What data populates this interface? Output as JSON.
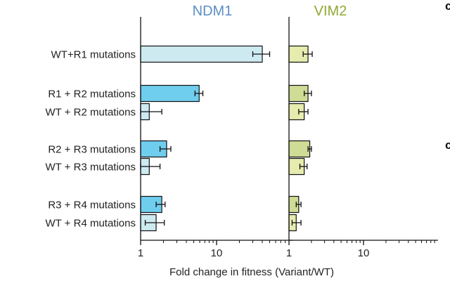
{
  "chart_data": {
    "type": "bar",
    "orientation": "horizontal",
    "xscale": "log",
    "xlim": [
      1,
      100
    ],
    "xlabel": "Fold change in fitness (Variant/WT)",
    "categories": [
      "WT+R1 mutations",
      "R1 + R2 mutations",
      "WT + R2 mutations",
      "R2 + R3 mutations",
      "WT + R3 mutations",
      "R3 + R4 mutations",
      "WT + R4 mutations"
    ],
    "panels": [
      {
        "title": "NDM1",
        "title_color": "#5b8fc4",
        "xticks": [
          1,
          10
        ],
        "xtick_labels": [
          "1",
          "10"
        ],
        "series": [
          {
            "values": [
              40,
              5.9,
              1.3,
              2.2,
              1.3,
              1.9,
              1.6
            ],
            "err_low": [
              30,
              5.2,
              1.0,
              1.8,
              1.0,
              1.6,
              1.15
            ],
            "err_high": [
              50,
              6.6,
              1.9,
              2.5,
              1.8,
              2.1,
              2.05
            ],
            "fills": [
              "#cdeaf1",
              "#6fcdee",
              "#cdeaf1",
              "#6fcdee",
              "#cdeaf1",
              "#6fcdee",
              "#cdeaf1"
            ]
          }
        ]
      },
      {
        "title": "VIM2",
        "title_color": "#8fa832",
        "xticks": [
          1,
          10
        ],
        "xtick_labels": [
          "1",
          "10"
        ],
        "series": [
          {
            "values": [
              1.8,
              1.8,
              1.6,
              1.9,
              1.6,
              1.35,
              1.25
            ],
            "err_low": [
              1.55,
              1.6,
              1.35,
              1.8,
              1.4,
              1.25,
              1.1
            ],
            "err_high": [
              2.05,
              2.0,
              1.8,
              2.0,
              1.75,
              1.45,
              1.45
            ],
            "fills": [
              "#e6ecae",
              "#cfdc95",
              "#e6ecae",
              "#cfdc95",
              "#e6ecae",
              "#cfdc95",
              "#e6ecae"
            ]
          }
        ]
      }
    ],
    "side_letters": [
      "c",
      "c"
    ]
  }
}
